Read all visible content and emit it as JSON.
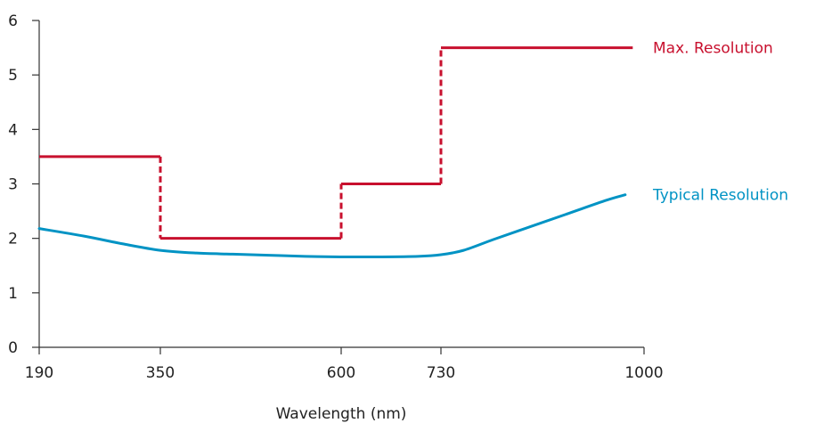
{
  "chart_data": {
    "type": "line",
    "title": "",
    "xlabel": "Wavelength (nm)",
    "ylabel": "",
    "x_ticks": [
      190,
      350,
      600,
      730,
      1000
    ],
    "y_ticks": [
      0,
      1,
      2,
      3,
      4,
      5,
      6
    ],
    "xlim": [
      190,
      1000
    ],
    "ylim": [
      0,
      6
    ],
    "grid": false,
    "series": [
      {
        "name": "Max. Resolution",
        "color": "#c8102e",
        "style": "step",
        "x": [
          190,
          350,
          350,
          600,
          600,
          730,
          730,
          985
        ],
        "y": [
          3.5,
          3.5,
          2,
          2,
          3,
          3,
          5.5,
          5.5
        ]
      },
      {
        "name": "Typical Resolution",
        "color": "#0093c4",
        "style": "smooth",
        "x": [
          190,
          250,
          300,
          350,
          400,
          450,
          500,
          550,
          600,
          650,
          700,
          730,
          760,
          800,
          850,
          900,
          950,
          975
        ],
        "y": [
          2.18,
          2.04,
          1.9,
          1.78,
          1.73,
          1.71,
          1.69,
          1.67,
          1.66,
          1.66,
          1.67,
          1.7,
          1.78,
          1.98,
          2.22,
          2.46,
          2.7,
          2.8
        ]
      }
    ]
  }
}
